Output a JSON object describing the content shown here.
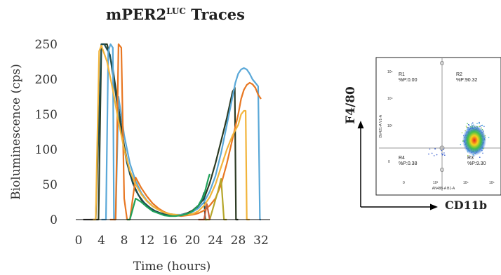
{
  "chart_data": [
    {
      "type": "line",
      "title_main": "mPER2",
      "title_sup": "LUC",
      "title_rest": " Traces",
      "xlabel": "Time (hours)",
      "ylabel": "Bioluminescence (cps)",
      "xlim": [
        0,
        32
      ],
      "ylim": [
        0,
        250
      ],
      "xticks": [
        0,
        4,
        8,
        12,
        16,
        20,
        24,
        28,
        32
      ],
      "yticks": [
        0,
        50,
        100,
        150,
        200,
        250
      ],
      "grid": false,
      "series": [
        {
          "color": "#2b3a22",
          "x": [
            2.5,
            3.5,
            4.0,
            5.0,
            6.0,
            7.0,
            8.0,
            9.0,
            10.0,
            11.0,
            12.0,
            13.0,
            14.0,
            15.0,
            16.0,
            17.0,
            18.0,
            19.0,
            20.0,
            21.0,
            22.0,
            23.0,
            24.0,
            25.0,
            26.0,
            27.0,
            27.4,
            27.6,
            28
          ],
          "y": [
            0,
            0,
            255,
            255,
            215,
            160,
            105,
            65,
            42,
            28,
            20,
            14,
            10,
            7,
            6,
            6,
            7,
            9,
            13,
            20,
            30,
            52,
            80,
            112,
            145,
            182,
            188,
            0,
            0
          ]
        },
        {
          "color": "#1e4f52",
          "x": [
            3.0,
            4.0,
            4.5,
            5.5,
            6.5,
            7.5,
            8.5,
            9.5,
            10.5,
            11.5,
            12.5,
            13.5,
            14.5,
            15.5,
            16.5,
            17.5,
            18.5,
            19.5,
            20.5,
            21.5,
            22.0,
            22.2,
            22.5
          ],
          "y": [
            0,
            255,
            255,
            235,
            180,
            125,
            80,
            52,
            35,
            24,
            17,
            12,
            9,
            7,
            6,
            6,
            7,
            9,
            14,
            25,
            38,
            0,
            0
          ]
        },
        {
          "color": "#5aa8d8",
          "x": [
            4.0,
            4.8,
            5.2,
            5.6,
            6.0,
            6.2,
            6.5,
            7.0,
            8.0,
            9.0,
            10.0,
            11.0,
            12.0,
            13.0,
            14.0,
            15.0,
            16.0,
            17.0,
            18.0,
            19.0,
            20.0,
            21.0,
            22.0,
            23.0,
            24.0,
            25.0,
            26.0,
            27.0,
            27.5,
            28.0,
            28.5,
            29.0,
            29.5,
            30.0,
            30.5,
            31.0,
            31.5,
            31.8,
            32
          ],
          "y": [
            0,
            0,
            240,
            255,
            245,
            0,
            0,
            175,
            120,
            80,
            55,
            38,
            27,
            19,
            14,
            10,
            8,
            7,
            7,
            8,
            11,
            16,
            25,
            40,
            62,
            95,
            135,
            175,
            195,
            208,
            214,
            216,
            214,
            208,
            200,
            195,
            190,
            0,
            0
          ]
        },
        {
          "color": "#e87722",
          "x": [
            5.5,
            6.5,
            7.0,
            7.5,
            8.0,
            8.5,
            9.0,
            10.0,
            11.0,
            12.0,
            13.0,
            14.0,
            15.0,
            16.0,
            17.0,
            18.0,
            19.0,
            20.0,
            21.0,
            22.0,
            23.0,
            24.0,
            25.0,
            26.0,
            27.0,
            28.0,
            28.5,
            29.0,
            29.5,
            30.0,
            30.5,
            31.0,
            31.5,
            32.0
          ],
          "y": [
            0,
            0,
            250,
            245,
            30,
            0,
            0,
            60,
            45,
            33,
            23,
            16,
            11,
            8,
            6,
            5,
            6,
            7,
            9,
            13,
            20,
            30,
            50,
            80,
            115,
            150,
            172,
            185,
            192,
            195,
            193,
            188,
            178,
            172
          ]
        },
        {
          "color": "#f2b43a",
          "x": [
            2.0,
            3.0,
            3.6,
            4.0,
            5.0,
            6.0,
            7.0,
            8.0,
            9.0,
            10.0,
            11.0,
            12.0,
            13.0,
            14.0,
            15.0,
            16.0,
            17.0,
            18.0,
            19.0,
            20.0,
            21.0,
            22.0,
            23.0,
            24.0,
            25.0,
            26.0,
            27.0,
            28.0,
            28.5,
            29.0,
            29.3,
            29.5,
            30
          ],
          "y": [
            0,
            0,
            240,
            248,
            225,
            185,
            140,
            100,
            70,
            50,
            36,
            26,
            19,
            14,
            10,
            8,
            7,
            6,
            7,
            8,
            12,
            20,
            32,
            50,
            75,
            100,
            120,
            135,
            150,
            155,
            155,
            0,
            0
          ]
        },
        {
          "color": "#1fa15a",
          "x": [
            8.5,
            9.0,
            10.0,
            11.0,
            12.0,
            13.0,
            14.0,
            15.0,
            16.0,
            17.0,
            18.0,
            19.0,
            20.0,
            21.0,
            22.0,
            22.8,
            23.0
          ],
          "y": [
            0,
            0,
            30,
            25,
            18,
            12,
            9,
            6,
            5,
            5,
            6,
            8,
            12,
            20,
            35,
            60,
            65
          ]
        },
        {
          "color": "#b5a62a",
          "x": [
            22.0,
            23.0,
            24.0,
            24.5,
            25.0,
            25.5,
            26.0
          ],
          "y": [
            0,
            0,
            28,
            42,
            58,
            0,
            0
          ]
        },
        {
          "color": "#c9623f",
          "x": [
            21.0,
            22.0,
            22.5,
            23.0
          ],
          "y": [
            0,
            0,
            22,
            0
          ]
        },
        {
          "color": "#3d3d3d",
          "x": [
            0.8,
            2.5
          ],
          "y": [
            0,
            0
          ]
        }
      ]
    },
    {
      "type": "scatter",
      "xlabel_small": "AN488-A B1-A",
      "ylabel_small": "BV421-A V1-A",
      "xticks": [
        "0",
        "10³",
        "10⁴",
        "10⁵"
      ],
      "yticks": [
        "10⁵",
        "10⁴",
        "10³",
        "0"
      ],
      "quadrants": [
        {
          "name": "R1",
          "stat": "%P:0.00"
        },
        {
          "name": "R2",
          "stat": "%P:90.32"
        },
        {
          "name": "R3",
          "stat": "%P:9.30"
        },
        {
          "name": "R4",
          "stat": "%P:0.38"
        }
      ],
      "axis_y_label": "F4/80",
      "axis_x_label": "CD11b"
    }
  ]
}
